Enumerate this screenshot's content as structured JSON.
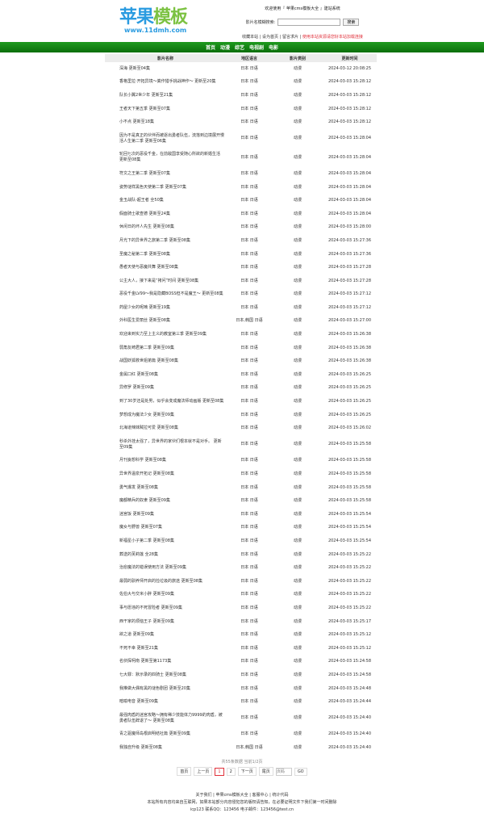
{
  "header": {
    "logo_text": "苹果模板",
    "logo_url_text": "www.11dmh.com",
    "welcome": "欢迎使用『 苹果cms模板大全 』建站系统",
    "search_label": "影片名模糊搜索:",
    "search_value": "",
    "search_button": "搜索",
    "links": [
      "收藏本站",
      "设为首页",
      "留言求片"
    ],
    "notice": "使用本站资源请您好本站加载连接",
    "accent": "#1a8c1a"
  },
  "nav": [
    "首页",
    "动漫",
    "综艺",
    "电视剧",
    "电影"
  ],
  "table": {
    "headers": [
      "影片名称",
      "地区语言",
      "影片类别",
      "更新时间"
    ],
    "rows": [
      [
        "深海 更新至04集",
        "日本 日语",
        "动漫",
        "2024-03-12 20:08:25"
      ],
      [
        "香格里拉·开拓异境～粪作猎手挑战神作～ 更新至20集",
        "日本 日语",
        "动漫",
        "2024-03-03 15:28:12"
      ],
      [
        "队长小翼2世少年 更新至21集",
        "日本 日语",
        "动漫",
        "2024-03-03 15:28:12"
      ],
      [
        "王者天下第五季 更新至07集",
        "日本 日语",
        "动漫",
        "2024-03-03 15:28:12"
      ],
      [
        "小不点 更新至18集",
        "日本 日语",
        "动漫",
        "2024-03-03 15:28:12"
      ],
      [
        "因为不是真正的伙伴而被逐出勇者队伍，流落到边境展开慢活人生第二季 更新至06集",
        "日本 日语",
        "动漫",
        "2024-03-03 15:28:04"
      ],
      [
        "轮回七次的恶役千金，在前敌国享受随心所欲的新婚生活 更新至08集",
        "日本 日语",
        "动漫",
        "2024-03-03 15:28:04"
      ],
      [
        "符文之王第二季 更新至07集",
        "日本 日语",
        "动漫",
        "2024-03-03 15:28:04"
      ],
      [
        "姿势谜样黑色天使第二季 更新至07集",
        "日本 日语",
        "动漫",
        "2024-03-03 15:28:04"
      ],
      [
        "金玉战队-超王者 全50集",
        "日本 日语",
        "动漫",
        "2024-03-03 15:28:04"
      ],
      [
        "假面骑士歌查德 更新至24集",
        "日本 日语",
        "动漫",
        "2024-03-03 15:28:04"
      ],
      [
        "休闲日的坏人先生 更新至08集",
        "日本 日语",
        "动漫",
        "2024-03-03 15:28:00"
      ],
      [
        "月光下的异世界之旅第二季 更新至08集",
        "日本 日语",
        "动漫",
        "2024-03-03 15:27:36"
      ],
      [
        "圣魔之秘第二季 更新至08集",
        "日本 日语",
        "动漫",
        "2024-03-03 15:27:36"
      ],
      [
        "愚者天使与恶魔共舞 更新至08集",
        "日本 日语",
        "动漫",
        "2024-03-03 15:27:28"
      ],
      [
        "公主大人，接下来是“拷问”时间 更新至08集",
        "日本 日语",
        "动漫",
        "2024-03-03 15:27:28"
      ],
      [
        "恶役千金LV99～我是隐藏BOSS但不是魔王～ 更新至08集",
        "日本 日语",
        "动漫",
        "2024-03-03 15:27:12"
      ],
      [
        "药屋少女的呢喃 更新至19集",
        "日本 日语",
        "动漫",
        "2024-03-03 15:27:12"
      ],
      [
        "外科医生爱丽丝 更新至08集",
        "日本,韩国 日语",
        "动漫",
        "2024-03-03 15:27:00"
      ],
      [
        "欢迎来到实力至上主义的教室第三季 更新至09集",
        "日本 日语",
        "动漫",
        "2024-03-03 15:26:38"
      ],
      [
        "弱角友崎君第二季 更新至09集",
        "日本 日语",
        "动漫",
        "2024-03-03 15:26:38"
      ],
      [
        "战国妖狐救世姐弟篇 更新至08集",
        "日本 日语",
        "动漫",
        "2024-03-03 15:26:38"
      ],
      [
        "金属口红 更新至08集",
        "日本 日语",
        "动漫",
        "2024-03-03 15:26:25"
      ],
      [
        "异修罗 更新至09集",
        "日本 日语",
        "动漫",
        "2024-03-03 15:26:25"
      ],
      [
        "到了30岁还是处男，似乎会变成魔法师动画版 更新至08集",
        "日本 日语",
        "动漫",
        "2024-03-03 15:26:25"
      ],
      [
        "梦想成为魔法少女 更新至09集",
        "日本 日语",
        "动漫",
        "2024-03-03 15:26:25"
      ],
      [
        "北海道辣妹贼拉可爱 更新至08集",
        "日本 日语",
        "动漫",
        "2024-03-03 15:26:02"
      ],
      [
        "秒杀外挂太强了，异世界的家伙们根本就不是对手。 更新至09集",
        "日本 日语",
        "动漫",
        "2024-03-03 15:25:58"
      ],
      [
        "月刊妄想科学 更新至08集",
        "日本 日语",
        "动漫",
        "2024-03-03 15:25:58"
      ],
      [
        "异世界温泉开拓记 更新至08集",
        "日本 日语",
        "动漫",
        "2024-03-03 15:25:58"
      ],
      [
        "勇气爆发 更新至08集",
        "日本 日语",
        "动漫",
        "2024-03-03 15:25:58"
      ],
      [
        "魔都精兵的奴隶 更新至09集",
        "日本 日语",
        "动漫",
        "2024-03-03 15:25:58"
      ],
      [
        "迷宫饭 更新至09集",
        "日本 日语",
        "动漫",
        "2024-03-03 15:25:54"
      ],
      [
        "魔女与野兽 更新至07集",
        "日本 日语",
        "动漫",
        "2024-03-03 15:25:54"
      ],
      [
        "新福星小子第二季 更新至08集",
        "日本 日语",
        "动漫",
        "2024-03-03 15:25:54"
      ],
      [
        "葬送的芙莉莲 全28集",
        "日本 日语",
        "动漫",
        "2024-03-03 15:25:22"
      ],
      [
        "治愈魔法的错误使用方法 更新至09集",
        "日本 日语",
        "动漫",
        "2024-03-03 15:25:22"
      ],
      [
        "最弱的驯养师开启的捡垃圾的旅途 更新至08集",
        "日本 日语",
        "动漫",
        "2024-03-03 15:25:22"
      ],
      [
        "佐伯大与交米小胖 更新至09集",
        "日本 日语",
        "动漫",
        "2024-03-03 15:25:22"
      ],
      [
        "事与愿违的不死冒险者 更新至09集",
        "日本 日语",
        "动漫",
        "2024-03-03 15:25:22"
      ],
      [
        "西干家的烦恼王子 更新至09集",
        "日本 日语",
        "动漫",
        "2024-03-03 15:25:17"
      ],
      [
        "欲之道 更新至09集",
        "日本 日语",
        "动漫",
        "2024-03-03 15:25:12"
      ],
      [
        "不死不幸 更新至21集",
        "日本 日语",
        "动漫",
        "2024-03-03 15:25:12"
      ],
      [
        "名侦探柯南 更新至第1173集",
        "日本 日语",
        "动漫",
        "2024-03-03 15:24:58"
      ],
      [
        "七大罪：默示录的四骑士 更新至08集",
        "日本 日语",
        "动漫",
        "2024-03-03 15:24:58"
      ],
      [
        "我推做大偶有黑的谜色剧团 更新至20集",
        "日本 日语",
        "动漫",
        "2024-03-03 15:24:48"
      ],
      [
        "暗喻电音 更新至09集",
        "日本 日语",
        "动漫",
        "2024-03-03 15:24:44"
      ],
      [
        "最强肉盾的迷宫攻略～拥有稀少技能体力9999的肉盾，被勇者队伍辞退了～ 更新至08集",
        "日本 日语",
        "动漫",
        "2024-03-03 15:24:40"
      ],
      [
        "青之驱魔师岛根启明结社篇 更新至09集",
        "日本 日语",
        "动漫",
        "2024-03-03 15:24:40"
      ],
      [
        "我独自升级 更新至08集",
        "日本,韩国 日语",
        "动漫",
        "2024-03-03 15:24:40"
      ]
    ]
  },
  "pagination": {
    "summary": "共55条数据 当前1/2页",
    "first": "首页",
    "prev": "上一页",
    "pages": [
      "1",
      "2"
    ],
    "current": "1",
    "next": "下一页",
    "last": "尾页",
    "jump_placeholder": "页码",
    "go": "GO"
  },
  "footer": {
    "links": [
      "关于我们",
      "苹果cms模板大全",
      "客服中心",
      "统计代码"
    ],
    "disclaimer": "本站所有内容均来自互联网，如果本站部分内容侵犯您的版权请告知，在必要证明文件下我们第一时间删除",
    "contact": "icp123 联系QQ：123456 电子邮件：123456@test.cn"
  }
}
